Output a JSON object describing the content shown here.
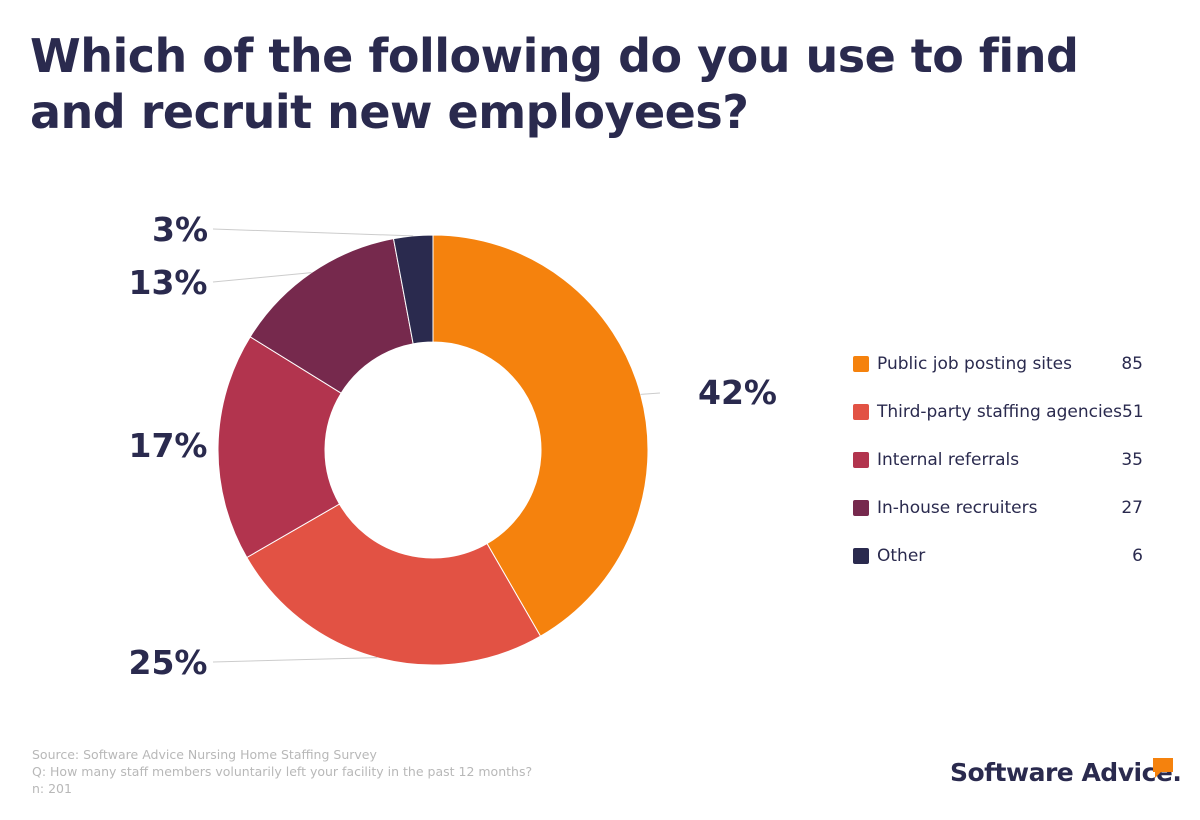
{
  "chart_data": {
    "type": "pie",
    "donut": true,
    "title": "Which of the following do you use to find and recruit new employees?",
    "categories": [
      "Public job posting sites",
      "Third-party staffing agencies",
      "Internal referrals",
      "In-house recruiters",
      "Other"
    ],
    "values": [
      85,
      51,
      35,
      27,
      6
    ],
    "percent_labels": [
      "42%",
      "25%",
      "17%",
      "13%",
      "3%"
    ],
    "colors": [
      "#f5820d",
      "#e25244",
      "#b2344e",
      "#76294d",
      "#2a2a4e"
    ],
    "legend_placement": "right",
    "start_angle": "top",
    "direction": "clockwise"
  },
  "footer": {
    "source": "Source: Software Advice Nursing Home Staffing Survey",
    "question": "Q: How many staff members voluntarily left your facility in the past 12 months?",
    "n": "n: 201"
  },
  "logo": "Software Advice."
}
